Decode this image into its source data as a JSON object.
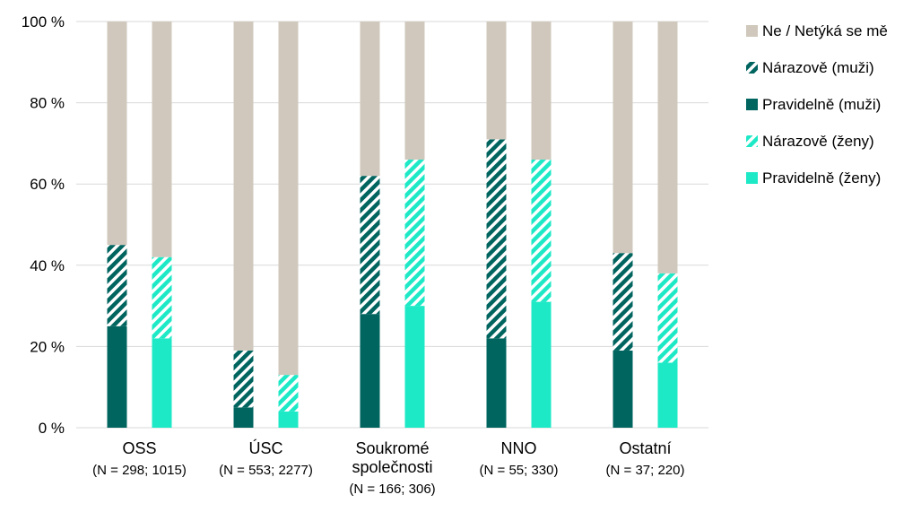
{
  "chart_data": {
    "type": "bar",
    "stacked": true,
    "y_unit_suffix": " %",
    "ylim": [
      0,
      100
    ],
    "yticks": [
      0,
      20,
      40,
      60,
      80,
      100
    ],
    "grid": true,
    "legend_position": "right",
    "categories": [
      {
        "name": "OSS",
        "n_label": "(N = 298; 1015)"
      },
      {
        "name": "ÚSC",
        "n_label": "(N = 553; 2277)"
      },
      {
        "name": "Soukromé\nspolečnosti",
        "n_label": "(N = 166; 306)"
      },
      {
        "name": "NNO",
        "n_label": "(N = 55; 330)"
      },
      {
        "name": "Ostatní",
        "n_label": "(N = 37; 220)"
      }
    ],
    "series": [
      {
        "name": "Ne / Netýká se mě",
        "color": "#d0c8bc",
        "pattern": "solid",
        "group": "both"
      },
      {
        "name": "Nárazově (muži)",
        "color": "#00645f",
        "pattern": "hatched",
        "group": "men"
      },
      {
        "name": "Pravidelně (muži)",
        "color": "#00645f",
        "pattern": "solid",
        "group": "men"
      },
      {
        "name": "Nárazově (ženy)",
        "color": "#1de9c6",
        "pattern": "hatched",
        "group": "women"
      },
      {
        "name": "Pravidelně (ženy)",
        "color": "#1de9c6",
        "pattern": "solid",
        "group": "women"
      }
    ],
    "bars": [
      {
        "category": "OSS",
        "group": "men",
        "regularly": 25,
        "occasionally": 20,
        "no": 55
      },
      {
        "category": "OSS",
        "group": "women",
        "regularly": 22,
        "occasionally": 20,
        "no": 58
      },
      {
        "category": "ÚSC",
        "group": "men",
        "regularly": 5,
        "occasionally": 14,
        "no": 81
      },
      {
        "category": "ÚSC",
        "group": "women",
        "regularly": 4,
        "occasionally": 9,
        "no": 87
      },
      {
        "category": "Soukromé společnosti",
        "group": "men",
        "regularly": 28,
        "occasionally": 34,
        "no": 38
      },
      {
        "category": "Soukromé společnosti",
        "group": "women",
        "regularly": 30,
        "occasionally": 36,
        "no": 34
      },
      {
        "category": "NNO",
        "group": "men",
        "regularly": 22,
        "occasionally": 49,
        "no": 29
      },
      {
        "category": "NNO",
        "group": "women",
        "regularly": 31,
        "occasionally": 35,
        "no": 34
      },
      {
        "category": "Ostatní",
        "group": "men",
        "regularly": 19,
        "occasionally": 24,
        "no": 57
      },
      {
        "category": "Ostatní",
        "group": "women",
        "regularly": 16,
        "occasionally": 22,
        "no": 62
      }
    ]
  }
}
